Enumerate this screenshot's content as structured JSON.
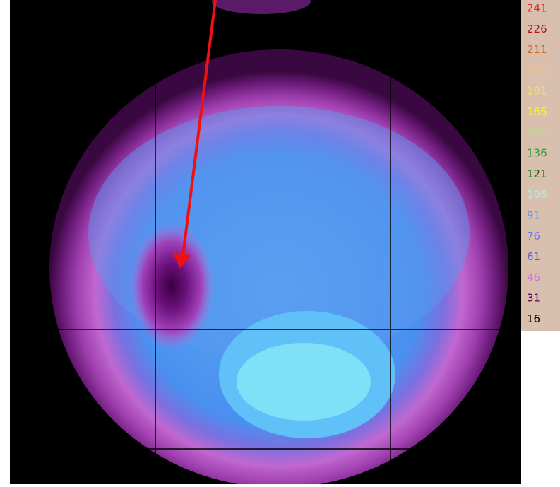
{
  "legend": {
    "items": [
      {
        "label": "241",
        "color": "#e02828"
      },
      {
        "label": "226",
        "color": "#b01818"
      },
      {
        "label": "211",
        "color": "#d06818"
      },
      {
        "label": "196",
        "color": "#f0c090"
      },
      {
        "label": "181",
        "color": "#f0e060"
      },
      {
        "label": "166",
        "color": "#f8f040"
      },
      {
        "label": "151",
        "color": "#a0f070"
      },
      {
        "label": "136",
        "color": "#30a030"
      },
      {
        "label": "121",
        "color": "#106810"
      },
      {
        "label": "106",
        "color": "#a8f0f0"
      },
      {
        "label": "91",
        "color": "#5898f0"
      },
      {
        "label": "76",
        "color": "#6878e8"
      },
      {
        "label": "61",
        "color": "#6060c0"
      },
      {
        "label": "46",
        "color": "#c878d8"
      },
      {
        "label": "31",
        "color": "#580058"
      },
      {
        "label": "16",
        "color": "#000000"
      }
    ]
  }
}
